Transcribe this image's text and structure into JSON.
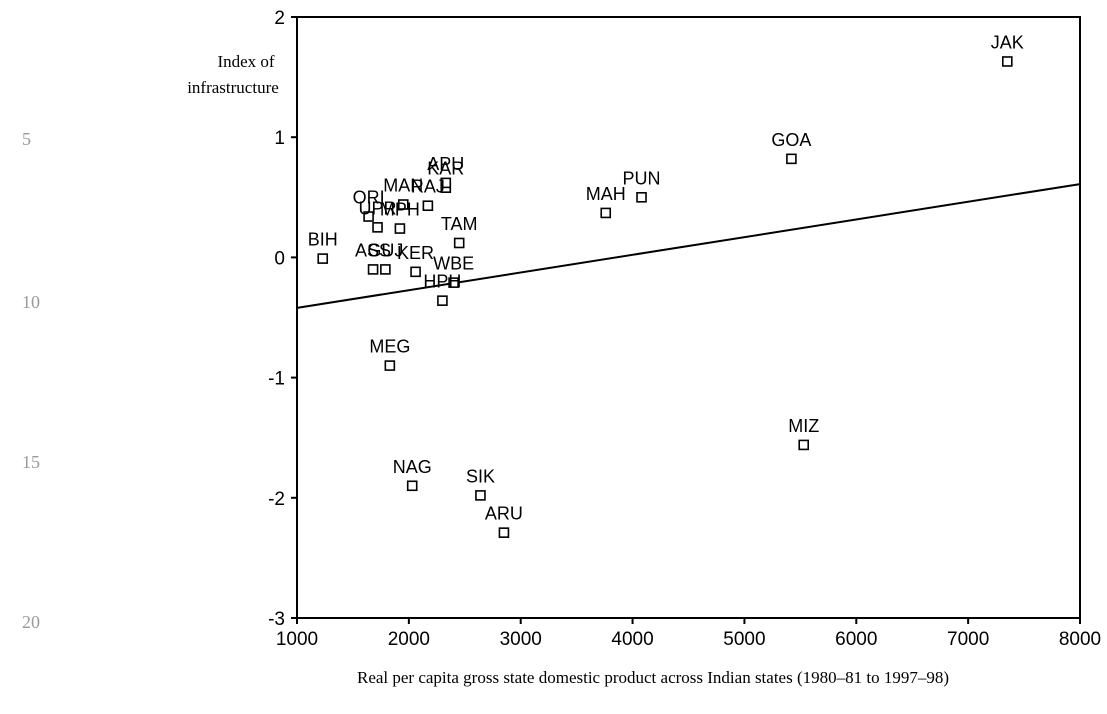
{
  "line_numbers": [
    "5",
    "10",
    "15",
    "20"
  ],
  "chart_data": {
    "type": "scatter",
    "title": "",
    "xlabel": "Real per capita gross state domestic product across Indian states (1980–81 to 1997–98)",
    "ylabel_lines": [
      "Index of",
      "infrastructure"
    ],
    "xlim": [
      1000,
      8000
    ],
    "ylim": [
      -3,
      2
    ],
    "xticks": [
      1000,
      2000,
      3000,
      4000,
      5000,
      6000,
      7000,
      8000
    ],
    "yticks": [
      2,
      1,
      0,
      -1,
      -2,
      -3
    ],
    "grid": false,
    "marker": "open-square",
    "points": [
      {
        "label": "JAK",
        "x": 7350,
        "y": 1.63
      },
      {
        "label": "GOA",
        "x": 5420,
        "y": 0.82
      },
      {
        "label": "PUN",
        "x": 4080,
        "y": 0.5
      },
      {
        "label": "MAH",
        "x": 3760,
        "y": 0.37
      },
      {
        "label": "KAR",
        "x": 2330,
        "y": 0.58
      },
      {
        "label": "MAN",
        "x": 1950,
        "y": 0.44
      },
      {
        "label": "APU",
        "x": 2330,
        "y": 0.62
      },
      {
        "label": "RAJ",
        "x": 2170,
        "y": 0.43
      },
      {
        "label": "ORI",
        "x": 1640,
        "y": 0.34
      },
      {
        "label": "UPR",
        "x": 1720,
        "y": 0.25
      },
      {
        "label": "MPH",
        "x": 1920,
        "y": 0.24
      },
      {
        "label": "TAM",
        "x": 2450,
        "y": 0.12
      },
      {
        "label": "BIH",
        "x": 1230,
        "y": -0.01
      },
      {
        "label": "ASS",
        "x": 1680,
        "y": -0.1
      },
      {
        "label": "GUJ",
        "x": 1790,
        "y": -0.1
      },
      {
        "label": "KER",
        "x": 2060,
        "y": -0.12
      },
      {
        "label": "WBE",
        "x": 2400,
        "y": -0.21
      },
      {
        "label": "HPH",
        "x": 2300,
        "y": -0.36
      },
      {
        "label": "MEG",
        "x": 1830,
        "y": -0.9
      },
      {
        "label": "MIZ",
        "x": 5530,
        "y": -1.56
      },
      {
        "label": "NAG",
        "x": 2030,
        "y": -1.9
      },
      {
        "label": "SIK",
        "x": 2640,
        "y": -1.98
      },
      {
        "label": "ARU",
        "x": 2850,
        "y": -2.29
      }
    ],
    "trend_line": {
      "x": [
        1000,
        8000
      ],
      "y": [
        -0.42,
        0.61
      ]
    }
  }
}
